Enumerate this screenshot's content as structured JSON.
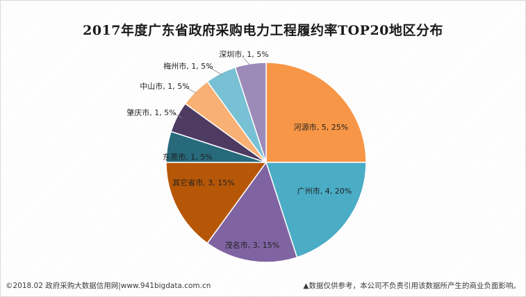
{
  "chart_data": {
    "type": "pie",
    "title": "2017年度广东省政府采购电力工程履约率TOP20地区分布",
    "slices": [
      {
        "label": "河源市",
        "value": 5,
        "percent": "25%",
        "color": "#f79646"
      },
      {
        "label": "广州市",
        "value": 4,
        "percent": "20%",
        "color": "#4bacc6"
      },
      {
        "label": "茂名市",
        "value": 3,
        "percent": "15%",
        "color": "#8064a2"
      },
      {
        "label": "其它省市",
        "value": 3,
        "percent": "15%",
        "color": "#b65708"
      },
      {
        "label": "东莞市",
        "value": 1,
        "percent": "5%",
        "color": "#276a7c"
      },
      {
        "label": "肇庆市",
        "value": 1,
        "percent": "5%",
        "color": "#4d3b62"
      },
      {
        "label": "中山市",
        "value": 1,
        "percent": "5%",
        "color": "#f9b074"
      },
      {
        "label": "梅州市",
        "value": 1,
        "percent": "5%",
        "color": "#78c0d4"
      },
      {
        "label": "深圳市",
        "value": 1,
        "percent": "5%",
        "color": "#9c8ab9"
      }
    ],
    "label_format": "{label}, {value}, {percent}"
  },
  "footer": {
    "source": "©2018.02 政府采购大数据信用网|www.941bigdata.com.cn",
    "disclaimer": "▲数据仅供参考，本公司不负责引用该数据所产生的商业负面影响。"
  }
}
